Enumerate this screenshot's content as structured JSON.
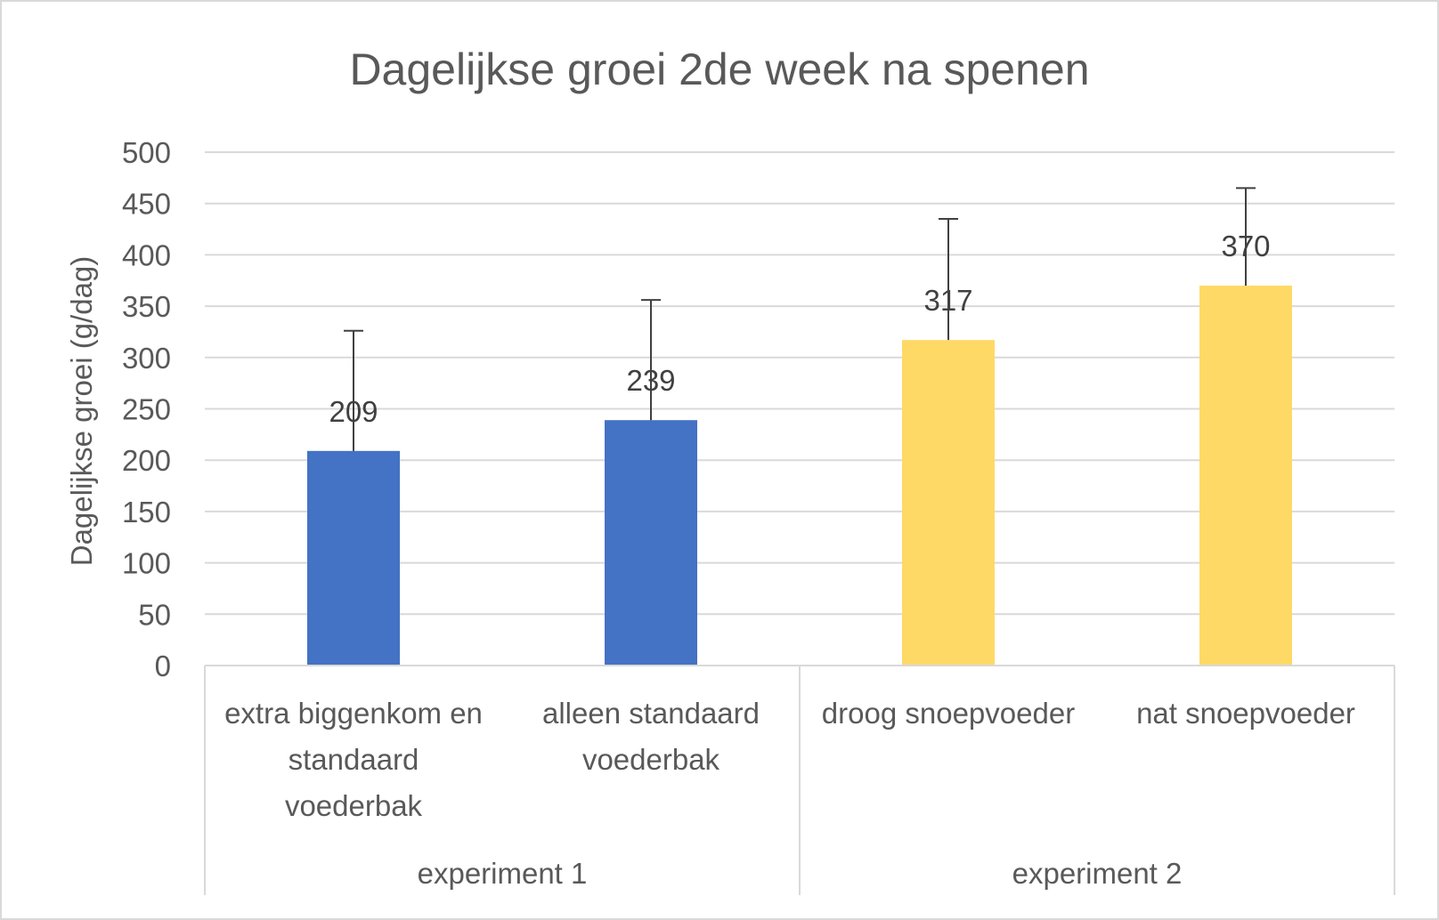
{
  "chart_data": {
    "type": "bar",
    "title": "Dagelijkse groei 2de week na spenen",
    "xlabel": "",
    "ylabel": "Dagelijkse groei (g/dag)",
    "ylim": [
      0,
      500
    ],
    "y_ticks": [
      "0",
      "50",
      "100",
      "150",
      "200",
      "250",
      "300",
      "350",
      "400",
      "450",
      "500"
    ],
    "grid": true,
    "legend": "none",
    "categories": [
      [
        "extra biggenkom en",
        "standaard",
        "voederbak"
      ],
      [
        "alleen standaard",
        "voederbak"
      ],
      [
        "droog snoepvoeder"
      ],
      [
        "nat snoepvoeder"
      ]
    ],
    "groups": [
      {
        "label": "experiment 1",
        "members": [
          0,
          1
        ]
      },
      {
        "label": "experiment 2",
        "members": [
          2,
          3
        ]
      }
    ],
    "values": [
      209,
      239,
      317,
      370
    ],
    "data_labels": [
      "209",
      "239",
      "317",
      "370"
    ],
    "error_bar_upper": [
      326,
      356,
      435,
      465
    ],
    "bar_colors": [
      "#4472c4",
      "#4472c4",
      "#ffd966",
      "#ffd966"
    ],
    "colors": {
      "text": "#595959",
      "label": "#404040",
      "grid": "#d9d9d9",
      "error_bar": "#404040"
    }
  }
}
